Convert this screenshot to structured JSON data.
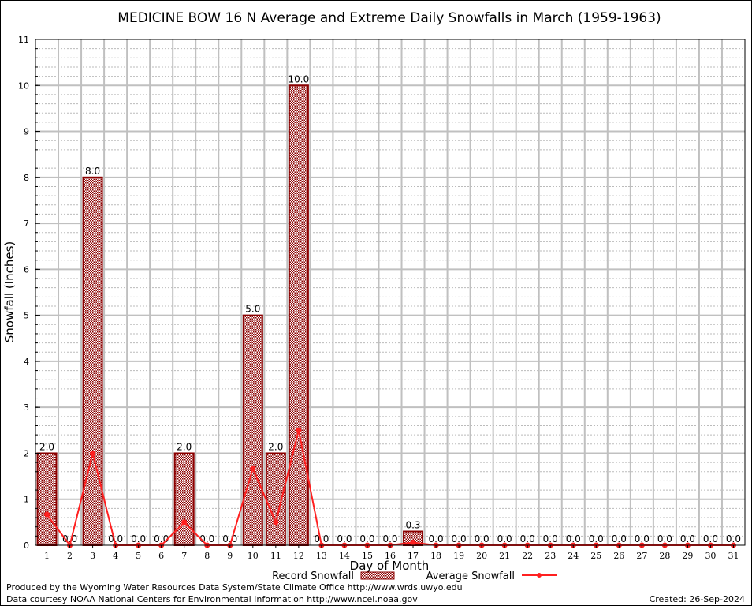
{
  "chart_data": {
    "type": "bar",
    "title": "MEDICINE BOW 16 N Average and Extreme Daily Snowfalls in March (1959-1963)",
    "xlabel": "Day of Month",
    "ylabel": "Snowfall (Inches)",
    "ylim": [
      0,
      11
    ],
    "yticks": [
      "0",
      "1",
      "2",
      "3",
      "4",
      "5",
      "6",
      "7",
      "8",
      "9",
      "10",
      "11"
    ],
    "categories": [
      "1",
      "2",
      "3",
      "4",
      "5",
      "6",
      "7",
      "8",
      "9",
      "10",
      "11",
      "12",
      "13",
      "14",
      "15",
      "16",
      "17",
      "18",
      "19",
      "20",
      "21",
      "22",
      "23",
      "24",
      "25",
      "26",
      "27",
      "28",
      "29",
      "30",
      "31"
    ],
    "series": [
      {
        "name": "Record Snowfall",
        "type": "bar",
        "color": "#8b0000",
        "values": [
          2.0,
          0.0,
          8.0,
          0.0,
          0.0,
          0.0,
          2.0,
          0.0,
          0.0,
          5.0,
          2.0,
          10.0,
          0.0,
          0.0,
          0.0,
          0.0,
          0.3,
          0.0,
          0.0,
          0.0,
          0.0,
          0.0,
          0.0,
          0.0,
          0.0,
          0.0,
          0.0,
          0.0,
          0.0,
          0.0,
          0.0
        ],
        "labels": [
          "2.0",
          "0.0",
          "8.0",
          "0.0",
          "0.0",
          "0.0",
          "2.0",
          "0.0",
          "0.0",
          "5.0",
          "2.0",
          "10.0",
          "0.0",
          "0.0",
          "0.0",
          "0.0",
          "0.3",
          "0.0",
          "0.0",
          "0.0",
          "0.0",
          "0.0",
          "0.0",
          "0.0",
          "0.0",
          "0.0",
          "0.0",
          "0.0",
          "0.0",
          "0.0",
          "0.0"
        ]
      },
      {
        "name": "Average Snowfall",
        "type": "line",
        "color": "#ff2020",
        "values": [
          0.67,
          0,
          2.0,
          0,
          0,
          0,
          0.5,
          0,
          0,
          1.67,
          0.5,
          2.5,
          0,
          0,
          0,
          0,
          0.06,
          0,
          0,
          0,
          0,
          0,
          0,
          0,
          0,
          0,
          0,
          0,
          0,
          0,
          0
        ]
      }
    ],
    "grid": true,
    "legend": "bottom-center"
  },
  "footer": {
    "produced": "Produced by the Wyoming Water Resources Data System/State Climate Office http://www.wrds.uwyo.edu",
    "courtesy": "Data courtesy NOAA National Centers for Environmental Information http://www.ncei.noaa.gov",
    "created": "Created: 26-Sep-2024"
  }
}
